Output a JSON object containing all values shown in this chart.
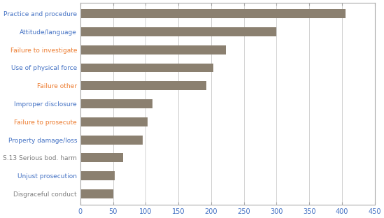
{
  "categories": [
    "Disgraceful conduct",
    "Unjust prosecution",
    "S.13 Serious bod. harm",
    "Property damage/loss",
    "Failure to prosecute",
    "Improper disclosure",
    "Failure other",
    "Use of physical force",
    "Failure to investigate",
    "Attitude/language",
    "Practice and procedure"
  ],
  "values": [
    50,
    52,
    65,
    95,
    103,
    110,
    193,
    203,
    223,
    300,
    405
  ],
  "label_colors": [
    "#7F7F7F",
    "#4472C4",
    "#7F7F7F",
    "#4472C4",
    "#ED7D31",
    "#4472C4",
    "#ED7D31",
    "#4472C4",
    "#ED7D31",
    "#4472C4",
    "#4472C4"
  ],
  "bar_color": "#8B8070",
  "background_color": "#FFFFFF",
  "xlim": [
    0,
    450
  ],
  "xticks": [
    0,
    50,
    100,
    150,
    200,
    250,
    300,
    350,
    400,
    450
  ],
  "bar_height": 0.5,
  "grid_color": "#C0C0C0",
  "border_color": "#AAAAAA",
  "label_fontsize": 6.5,
  "tick_fontsize": 7
}
